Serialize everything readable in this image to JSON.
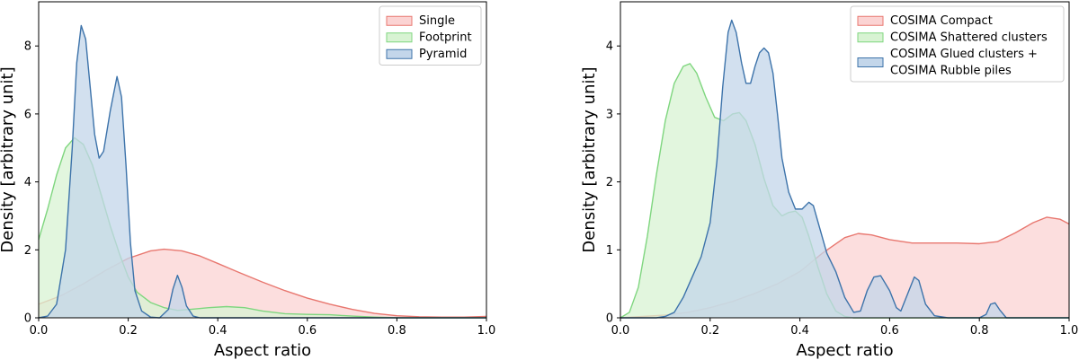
{
  "chart_data": [
    {
      "type": "area",
      "subtype": "kde-density",
      "title": "",
      "xlabel": "Aspect ratio",
      "ylabel": "Density [arbitrary unit]",
      "xlim": [
        0.0,
        1.0
      ],
      "ylim": [
        0,
        9.3
      ],
      "xticks": [
        "0.0",
        "0.2",
        "0.4",
        "0.6",
        "0.8",
        "1.0"
      ],
      "xtick_values": [
        0.0,
        0.2,
        0.4,
        0.6,
        0.8,
        1.0
      ],
      "yticks": [
        "0",
        "2",
        "4",
        "6",
        "8"
      ],
      "ytick_values": [
        0,
        2,
        4,
        6,
        8
      ],
      "grid": false,
      "legend_position": "top-right",
      "series": [
        {
          "name": "Single",
          "fill": "#fbd3d3",
          "stroke": "#e8776f",
          "points": [
            [
              0.0,
              0.4
            ],
            [
              0.05,
              0.65
            ],
            [
              0.1,
              1.0
            ],
            [
              0.15,
              1.4
            ],
            [
              0.2,
              1.75
            ],
            [
              0.25,
              1.97
            ],
            [
              0.28,
              2.02
            ],
            [
              0.32,
              1.97
            ],
            [
              0.36,
              1.82
            ],
            [
              0.4,
              1.6
            ],
            [
              0.45,
              1.32
            ],
            [
              0.5,
              1.05
            ],
            [
              0.55,
              0.8
            ],
            [
              0.6,
              0.58
            ],
            [
              0.65,
              0.4
            ],
            [
              0.7,
              0.25
            ],
            [
              0.75,
              0.13
            ],
            [
              0.8,
              0.06
            ],
            [
              0.85,
              0.03
            ],
            [
              0.9,
              0.02
            ],
            [
              0.95,
              0.02
            ],
            [
              1.0,
              0.04
            ]
          ]
        },
        {
          "name": "Footprint",
          "fill": "#d8f3d3",
          "stroke": "#7fd67f",
          "points": [
            [
              0.0,
              2.3
            ],
            [
              0.02,
              3.2
            ],
            [
              0.04,
              4.2
            ],
            [
              0.06,
              5.0
            ],
            [
              0.08,
              5.3
            ],
            [
              0.1,
              5.1
            ],
            [
              0.12,
              4.5
            ],
            [
              0.14,
              3.6
            ],
            [
              0.16,
              2.7
            ],
            [
              0.18,
              1.9
            ],
            [
              0.2,
              1.2
            ],
            [
              0.22,
              0.75
            ],
            [
              0.25,
              0.45
            ],
            [
              0.28,
              0.3
            ],
            [
              0.31,
              0.22
            ],
            [
              0.34,
              0.25
            ],
            [
              0.38,
              0.3
            ],
            [
              0.42,
              0.33
            ],
            [
              0.46,
              0.3
            ],
            [
              0.5,
              0.2
            ],
            [
              0.55,
              0.12
            ],
            [
              0.6,
              0.1
            ],
            [
              0.65,
              0.09
            ],
            [
              0.7,
              0.05
            ],
            [
              0.75,
              0.02
            ],
            [
              0.8,
              0.0
            ],
            [
              1.0,
              0.0
            ]
          ]
        },
        {
          "name": "Pyramid",
          "fill": "#c3d6ea",
          "stroke": "#3d73aa",
          "points": [
            [
              0.0,
              0.0
            ],
            [
              0.02,
              0.05
            ],
            [
              0.04,
              0.4
            ],
            [
              0.06,
              2.0
            ],
            [
              0.075,
              5.0
            ],
            [
              0.085,
              7.5
            ],
            [
              0.095,
              8.6
            ],
            [
              0.105,
              8.2
            ],
            [
              0.115,
              6.8
            ],
            [
              0.125,
              5.4
            ],
            [
              0.135,
              4.7
            ],
            [
              0.145,
              4.9
            ],
            [
              0.16,
              6.1
            ],
            [
              0.175,
              7.1
            ],
            [
              0.185,
              6.5
            ],
            [
              0.195,
              4.5
            ],
            [
              0.205,
              2.2
            ],
            [
              0.215,
              0.8
            ],
            [
              0.23,
              0.2
            ],
            [
              0.25,
              0.02
            ],
            [
              0.27,
              0.0
            ],
            [
              0.29,
              0.25
            ],
            [
              0.3,
              0.85
            ],
            [
              0.31,
              1.25
            ],
            [
              0.32,
              0.9
            ],
            [
              0.33,
              0.35
            ],
            [
              0.345,
              0.05
            ],
            [
              0.36,
              0.0
            ],
            [
              1.0,
              0.0
            ]
          ]
        }
      ]
    },
    {
      "type": "area",
      "subtype": "kde-density",
      "title": "",
      "xlabel": "Aspect ratio",
      "ylabel": "Density [arbitrary unit]",
      "xlim": [
        0.0,
        1.0
      ],
      "ylim": [
        0,
        4.65
      ],
      "xticks": [
        "0.0",
        "0.2",
        "0.4",
        "0.6",
        "0.8",
        "1.0"
      ],
      "xtick_values": [
        0.0,
        0.2,
        0.4,
        0.6,
        0.8,
        1.0
      ],
      "yticks": [
        "0",
        "1",
        "2",
        "3",
        "4"
      ],
      "ytick_values": [
        0,
        1,
        2,
        3,
        4
      ],
      "grid": false,
      "legend_position": "top-right",
      "series": [
        {
          "name": "COSIMA Compact",
          "fill": "#fbd3d3",
          "stroke": "#e8776f",
          "points": [
            [
              0.0,
              0.0
            ],
            [
              0.05,
              0.02
            ],
            [
              0.1,
              0.04
            ],
            [
              0.15,
              0.08
            ],
            [
              0.2,
              0.15
            ],
            [
              0.25,
              0.24
            ],
            [
              0.3,
              0.36
            ],
            [
              0.35,
              0.5
            ],
            [
              0.4,
              0.68
            ],
            [
              0.45,
              0.95
            ],
            [
              0.5,
              1.18
            ],
            [
              0.53,
              1.24
            ],
            [
              0.56,
              1.22
            ],
            [
              0.6,
              1.15
            ],
            [
              0.65,
              1.1
            ],
            [
              0.7,
              1.1
            ],
            [
              0.75,
              1.1
            ],
            [
              0.8,
              1.09
            ],
            [
              0.84,
              1.12
            ],
            [
              0.88,
              1.25
            ],
            [
              0.92,
              1.4
            ],
            [
              0.95,
              1.48
            ],
            [
              0.98,
              1.45
            ],
            [
              1.0,
              1.38
            ]
          ]
        },
        {
          "name": "COSIMA Shattered clusters",
          "fill": "#d8f3d3",
          "stroke": "#7fd67f",
          "points": [
            [
              0.0,
              0.0
            ],
            [
              0.02,
              0.08
            ],
            [
              0.04,
              0.45
            ],
            [
              0.06,
              1.2
            ],
            [
              0.08,
              2.1
            ],
            [
              0.1,
              2.9
            ],
            [
              0.12,
              3.45
            ],
            [
              0.14,
              3.7
            ],
            [
              0.155,
              3.74
            ],
            [
              0.17,
              3.6
            ],
            [
              0.19,
              3.25
            ],
            [
              0.21,
              2.95
            ],
            [
              0.23,
              2.9
            ],
            [
              0.25,
              3.0
            ],
            [
              0.265,
              3.02
            ],
            [
              0.28,
              2.9
            ],
            [
              0.3,
              2.55
            ],
            [
              0.32,
              2.05
            ],
            [
              0.34,
              1.65
            ],
            [
              0.36,
              1.5
            ],
            [
              0.375,
              1.55
            ],
            [
              0.39,
              1.57
            ],
            [
              0.405,
              1.48
            ],
            [
              0.42,
              1.2
            ],
            [
              0.44,
              0.75
            ],
            [
              0.46,
              0.35
            ],
            [
              0.48,
              0.1
            ],
            [
              0.5,
              0.02
            ],
            [
              0.52,
              0.0
            ],
            [
              1.0,
              0.0
            ]
          ]
        },
        {
          "name": "COSIMA Glued clusters + COSIMA Rubble piles",
          "name_lines": [
            "COSIMA Glued clusters +",
            "COSIMA Rubble piles"
          ],
          "fill": "#c3d6ea",
          "stroke": "#3d73aa",
          "points": [
            [
              0.0,
              0.0
            ],
            [
              0.08,
              0.0
            ],
            [
              0.1,
              0.02
            ],
            [
              0.12,
              0.08
            ],
            [
              0.14,
              0.3
            ],
            [
              0.16,
              0.6
            ],
            [
              0.18,
              0.9
            ],
            [
              0.2,
              1.4
            ],
            [
              0.215,
              2.3
            ],
            [
              0.228,
              3.4
            ],
            [
              0.24,
              4.2
            ],
            [
              0.248,
              4.38
            ],
            [
              0.258,
              4.2
            ],
            [
              0.27,
              3.75
            ],
            [
              0.28,
              3.45
            ],
            [
              0.29,
              3.45
            ],
            [
              0.3,
              3.7
            ],
            [
              0.31,
              3.9
            ],
            [
              0.32,
              3.97
            ],
            [
              0.33,
              3.9
            ],
            [
              0.34,
              3.6
            ],
            [
              0.35,
              3.0
            ],
            [
              0.36,
              2.35
            ],
            [
              0.375,
              1.85
            ],
            [
              0.39,
              1.6
            ],
            [
              0.405,
              1.6
            ],
            [
              0.42,
              1.7
            ],
            [
              0.43,
              1.65
            ],
            [
              0.445,
              1.3
            ],
            [
              0.46,
              0.95
            ],
            [
              0.48,
              0.68
            ],
            [
              0.5,
              0.3
            ],
            [
              0.52,
              0.08
            ],
            [
              0.535,
              0.1
            ],
            [
              0.55,
              0.4
            ],
            [
              0.565,
              0.6
            ],
            [
              0.58,
              0.62
            ],
            [
              0.6,
              0.4
            ],
            [
              0.615,
              0.15
            ],
            [
              0.625,
              0.1
            ],
            [
              0.64,
              0.35
            ],
            [
              0.655,
              0.6
            ],
            [
              0.665,
              0.55
            ],
            [
              0.68,
              0.2
            ],
            [
              0.7,
              0.03
            ],
            [
              0.73,
              0.0
            ],
            [
              0.8,
              0.0
            ],
            [
              0.815,
              0.05
            ],
            [
              0.825,
              0.2
            ],
            [
              0.835,
              0.22
            ],
            [
              0.845,
              0.12
            ],
            [
              0.86,
              0.0
            ],
            [
              1.0,
              0.0
            ]
          ]
        }
      ]
    }
  ]
}
